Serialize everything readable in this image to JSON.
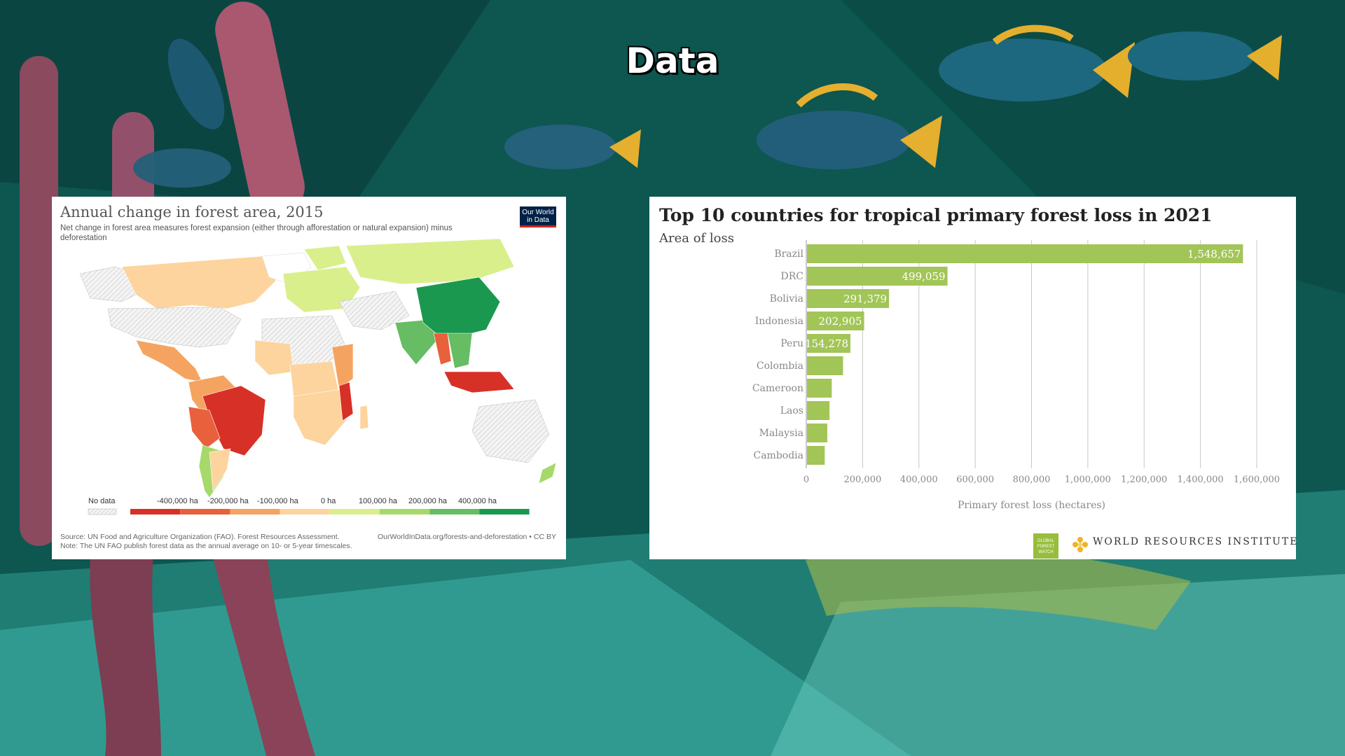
{
  "slide": {
    "title": "Data"
  },
  "owid": {
    "title": "Annual change in forest area, 2015",
    "subtitle": "Net change in forest area measures forest expansion (either through afforestation or natural expansion) minus deforestation",
    "logo_line1": "Our World",
    "logo_line2": "in Data",
    "source": "Source: UN Food and Agriculture Organization (FAO). Forest Resources Assessment.",
    "note": "Note: The UN FAO publish forest data as the annual average on 10- or 5-year timescales.",
    "url": "OurWorldInData.org/forests-and-deforestation • CC BY",
    "legend": {
      "no_data": "No data",
      "labels": [
        "-400,000 ha",
        "-200,000 ha",
        "-100,000 ha",
        "0 ha",
        "100,000 ha",
        "200,000 ha",
        "400,000 ha"
      ],
      "colors": [
        "#d73027",
        "#e8603c",
        "#f4a460",
        "#fdd49e",
        "#d9ef8b",
        "#a6d96a",
        "#66bd63",
        "#1a9850"
      ]
    }
  },
  "wri": {
    "brand": "WORLD RESOURCES INSTITUTE",
    "gfw_logo": "GLOBAL FOREST WATCH",
    "chart_data": {
      "type": "bar",
      "orientation": "horizontal",
      "title": "Top 10 countries for tropical primary forest loss in 2021",
      "subtitle": "Area of loss",
      "xlabel": "Primary forest loss (hectares)",
      "categories": [
        "Brazil",
        "DRC",
        "Bolivia",
        "Indonesia",
        "Peru",
        "Colombia",
        "Cameroon",
        "Laos",
        "Malaysia",
        "Cambodia"
      ],
      "values": [
        1548657,
        499059,
        291379,
        202905,
        154278,
        128000,
        88000,
        80000,
        72000,
        63000
      ],
      "data_labels": [
        "1,548,657",
        "499,059",
        "291,379",
        "202,905",
        "154,278",
        "",
        "",
        "",
        "",
        ""
      ],
      "xlim": [
        0,
        1600000
      ],
      "xticks": [
        0,
        200000,
        400000,
        600000,
        800000,
        1000000,
        1200000,
        1400000,
        1600000
      ],
      "xtick_labels": [
        "0",
        "200,000",
        "400,000",
        "600,000",
        "800,000",
        "1,000,000",
        "1,200,000",
        "1,400,000",
        "1,600,000"
      ],
      "bar_color": "#a2c557",
      "grid": true
    }
  }
}
